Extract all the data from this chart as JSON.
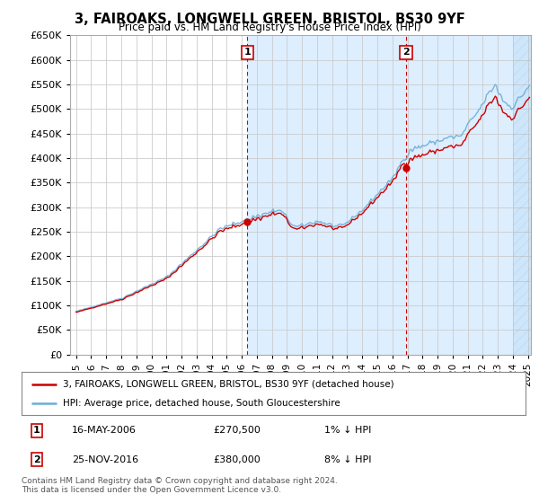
{
  "title": "3, FAIROAKS, LONGWELL GREEN, BRISTOL, BS30 9YF",
  "subtitle": "Price paid vs. HM Land Registry's House Price Index (HPI)",
  "legend_line1": "3, FAIROAKS, LONGWELL GREEN, BRISTOL, BS30 9YF (detached house)",
  "legend_line2": "HPI: Average price, detached house, South Gloucestershire",
  "annotation1": {
    "label": "1",
    "date_str": "16-MAY-2006",
    "price": 270500,
    "note": "1% ↓ HPI",
    "year": 2006.37
  },
  "annotation2": {
    "label": "2",
    "date_str": "25-NOV-2016",
    "price": 380000,
    "note": "8% ↓ HPI",
    "year": 2016.9
  },
  "footer": "Contains HM Land Registry data © Crown copyright and database right 2024.\nThis data is licensed under the Open Government Licence v3.0.",
  "hpi_color": "#6baed6",
  "price_color": "#cc0000",
  "plot_bg_color": "#ffffff",
  "shade_color": "#ddeeff",
  "ylim": [
    0,
    650000
  ],
  "sale1_marker_price": 270500,
  "sale2_marker_price": 380000
}
